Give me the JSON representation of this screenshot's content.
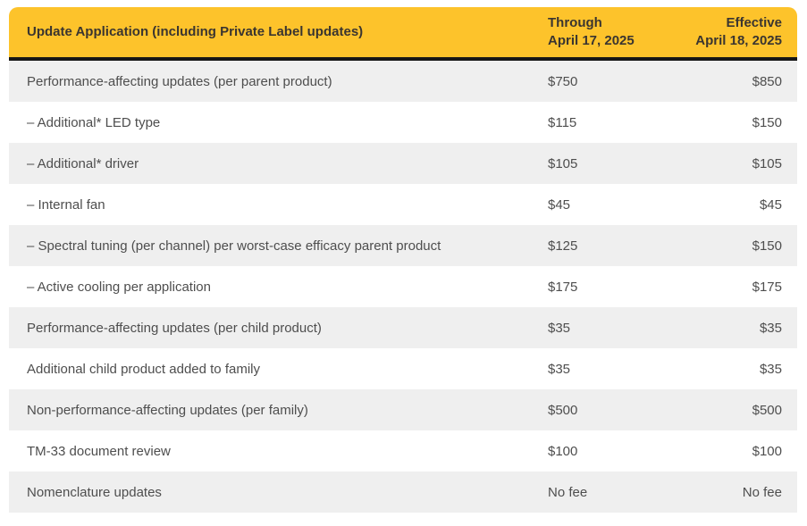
{
  "table": {
    "header": {
      "col1": "Update Application (including Private Label updates)",
      "col2_line1": "Through",
      "col2_line2": "April 17, 2025",
      "col3_line1": "Effective",
      "col3_line2": "April 18, 2025"
    },
    "rows": [
      {
        "label": "Performance-affecting updates (per parent product)",
        "through": "$750",
        "effective": "$850"
      },
      {
        "label": "– Additional* LED type",
        "through": "$115",
        "effective": "$150"
      },
      {
        "label": "– Additional* driver",
        "through": "$105",
        "effective": "$105"
      },
      {
        "label": "– Internal fan",
        "through": "$45",
        "effective": "$45"
      },
      {
        "label": "– Spectral tuning (per channel) per worst-case efficacy parent product",
        "through": "$125",
        "effective": "$150"
      },
      {
        "label": "– Active cooling per application",
        "through": "$175",
        "effective": "$175"
      },
      {
        "label": "Performance-affecting updates (per child product)",
        "through": "$35",
        "effective": "$35"
      },
      {
        "label": "Additional child product added to family",
        "through": "$35",
        "effective": "$35"
      },
      {
        "label": "Non-performance-affecting updates (per family)",
        "through": "$500",
        "effective": "$500"
      },
      {
        "label": "TM-33 document review",
        "through": "$100",
        "effective": "$100"
      },
      {
        "label": "Nomenclature updates",
        "through": "No fee",
        "effective": "No fee"
      }
    ],
    "colors": {
      "header_bg": "#fdc32b",
      "header_text": "#3a3530",
      "row_alt_bg": "#efefef",
      "row_text": "#4e4e4e",
      "divider": "#161616"
    }
  }
}
